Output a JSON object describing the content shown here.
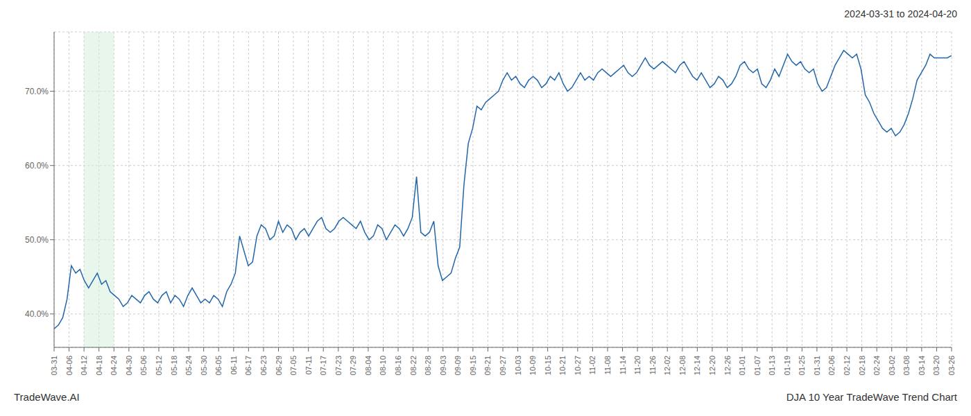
{
  "chart_data": {
    "type": "line",
    "title": "2024-03-31 to 2024-04-20",
    "annotations": [
      "TradeWave.AI",
      "DJA 10 Year TradeWave Trend Chart"
    ],
    "color": "#2266aa",
    "grid": true,
    "xlim": [
      0,
      208
    ],
    "ylim": [
      35.5,
      78.0
    ],
    "yticks": [
      {
        "value": 40.0,
        "label": "40.0%"
      },
      {
        "value": 50.0,
        "label": "50.0%"
      },
      {
        "value": 60.0,
        "label": "60.0%"
      },
      {
        "value": 70.0,
        "label": "70.0%"
      }
    ],
    "xticks": [
      {
        "value": 0,
        "label": "03-31"
      },
      {
        "value": 3.466666666667,
        "label": "04-06"
      },
      {
        "value": 6.933333333333,
        "label": "04-12"
      },
      {
        "value": 10.4,
        "label": "04-18"
      },
      {
        "value": 13.866666666667,
        "label": "04-24"
      },
      {
        "value": 17.333333333333,
        "label": "04-30"
      },
      {
        "value": 20.8,
        "label": "05-06"
      },
      {
        "value": 24.266666666667,
        "label": "05-12"
      },
      {
        "value": 27.733333333333,
        "label": "05-18"
      },
      {
        "value": 31.2,
        "label": "05-24"
      },
      {
        "value": 34.666666666667,
        "label": "05-30"
      },
      {
        "value": 38.133333333333,
        "label": "06-05"
      },
      {
        "value": 41.6,
        "label": "06-11"
      },
      {
        "value": 45.066666666667,
        "label": "06-17"
      },
      {
        "value": 48.533333333333,
        "label": "06-23"
      },
      {
        "value": 52,
        "label": "06-29"
      },
      {
        "value": 55.466666666667,
        "label": "07-05"
      },
      {
        "value": 58.933333333333,
        "label": "07-11"
      },
      {
        "value": 62.4,
        "label": "07-17"
      },
      {
        "value": 65.866666666667,
        "label": "07-23"
      },
      {
        "value": 69.333333333333,
        "label": "07-29"
      },
      {
        "value": 72.8,
        "label": "08-04"
      },
      {
        "value": 76.266666666667,
        "label": "08-10"
      },
      {
        "value": 79.733333333333,
        "label": "08-16"
      },
      {
        "value": 83.2,
        "label": "08-22"
      },
      {
        "value": 86.666666666667,
        "label": "08-28"
      },
      {
        "value": 90.133333333333,
        "label": "09-03"
      },
      {
        "value": 93.6,
        "label": "09-09"
      },
      {
        "value": 97.066666666667,
        "label": "09-15"
      },
      {
        "value": 100.533333333333,
        "label": "09-21"
      },
      {
        "value": 104,
        "label": "09-27"
      },
      {
        "value": 107.466666666667,
        "label": "10-03"
      },
      {
        "value": 110.933333333333,
        "label": "10-09"
      },
      {
        "value": 114.4,
        "label": "10-15"
      },
      {
        "value": 117.866666666667,
        "label": "10-21"
      },
      {
        "value": 121.333333333333,
        "label": "10-27"
      },
      {
        "value": 124.8,
        "label": "11-02"
      },
      {
        "value": 128.266666666667,
        "label": "11-08"
      },
      {
        "value": 131.733333333333,
        "label": "11-14"
      },
      {
        "value": 135.2,
        "label": "11-20"
      },
      {
        "value": 138.666666666667,
        "label": "11-26"
      },
      {
        "value": 142.133333333333,
        "label": "12-02"
      },
      {
        "value": 145.6,
        "label": "12-08"
      },
      {
        "value": 149.066666666667,
        "label": "12-14"
      },
      {
        "value": 152.533333333333,
        "label": "12-20"
      },
      {
        "value": 156,
        "label": "12-26"
      },
      {
        "value": 159.466666666667,
        "label": "01-01"
      },
      {
        "value": 162.933333333333,
        "label": "01-07"
      },
      {
        "value": 166.4,
        "label": "01-13"
      },
      {
        "value": 169.866666666667,
        "label": "01-19"
      },
      {
        "value": 173.333333333333,
        "label": "01-25"
      },
      {
        "value": 176.8,
        "label": "01-31"
      },
      {
        "value": 180.266666666667,
        "label": "02-06"
      },
      {
        "value": 183.733333333333,
        "label": "02-12"
      },
      {
        "value": 187.2,
        "label": "02-18"
      },
      {
        "value": 190.666666666667,
        "label": "02-24"
      },
      {
        "value": 194.133333333333,
        "label": "03-02"
      },
      {
        "value": 197.6,
        "label": "03-08"
      },
      {
        "value": 201.066666666667,
        "label": "03-14"
      },
      {
        "value": 204.533333333333,
        "label": "03-20"
      },
      {
        "value": 208,
        "label": "03-26"
      }
    ],
    "shade": {
      "x0": 6.933333333333,
      "x1": 13.866666666667,
      "color": "#d4edda"
    },
    "x": [
      0,
      1,
      2,
      3,
      4,
      5,
      6,
      7,
      8,
      9,
      10,
      11,
      12,
      13,
      14,
      15,
      16,
      17,
      18,
      19,
      20,
      21,
      22,
      23,
      24,
      25,
      26,
      27,
      28,
      29,
      30,
      31,
      32,
      33,
      34,
      35,
      36,
      37,
      38,
      39,
      40,
      41,
      42,
      43,
      44,
      45,
      46,
      47,
      48,
      49,
      50,
      51,
      52,
      53,
      54,
      55,
      56,
      57,
      58,
      59,
      60,
      61,
      62,
      63,
      64,
      65,
      66,
      67,
      68,
      69,
      70,
      71,
      72,
      73,
      74,
      75,
      76,
      77,
      78,
      79,
      80,
      81,
      82,
      83,
      84,
      85,
      86,
      87,
      88,
      89,
      90,
      91,
      92,
      93,
      94,
      95,
      96,
      97,
      98,
      99,
      100,
      101,
      102,
      103,
      104,
      105,
      106,
      107,
      108,
      109,
      110,
      111,
      112,
      113,
      114,
      115,
      116,
      117,
      118,
      119,
      120,
      121,
      122,
      123,
      124,
      125,
      126,
      127,
      128,
      129,
      130,
      131,
      132,
      133,
      134,
      135,
      136,
      137,
      138,
      139,
      140,
      141,
      142,
      143,
      144,
      145,
      146,
      147,
      148,
      149,
      150,
      151,
      152,
      153,
      154,
      155,
      156,
      157,
      158,
      159,
      160,
      161,
      162,
      163,
      164,
      165,
      166,
      167,
      168,
      169,
      170,
      171,
      172,
      173,
      174,
      175,
      176,
      177,
      178,
      179,
      180,
      181,
      182,
      183,
      184,
      185,
      186,
      187,
      188,
      189,
      190,
      191,
      192,
      193,
      194,
      195,
      196,
      197,
      198,
      199,
      200,
      201,
      202,
      203,
      204,
      205,
      206,
      207,
      208
    ],
    "values": [
      38.0,
      38.5,
      39.5,
      42.0,
      46.5,
      45.5,
      46.0,
      44.5,
      43.5,
      44.5,
      45.5,
      44.0,
      44.5,
      43.0,
      42.5,
      42.0,
      41.0,
      41.5,
      42.5,
      42.0,
      41.5,
      42.5,
      43.0,
      42.0,
      41.5,
      42.5,
      43.0,
      41.5,
      42.5,
      42.0,
      41.0,
      42.5,
      43.5,
      42.5,
      41.5,
      42.0,
      41.5,
      42.5,
      42.0,
      41.0,
      43.0,
      44.0,
      45.5,
      50.5,
      48.5,
      46.5,
      47.0,
      50.5,
      52.0,
      51.5,
      50.0,
      50.5,
      52.5,
      51.0,
      52.0,
      51.5,
      50.0,
      51.0,
      51.5,
      50.5,
      51.5,
      52.5,
      53.0,
      51.5,
      51.0,
      51.5,
      52.5,
      53.0,
      52.5,
      52.0,
      51.5,
      52.5,
      51.0,
      50.0,
      50.5,
      52.0,
      51.5,
      50.0,
      51.0,
      52.0,
      51.5,
      50.5,
      51.5,
      53.0,
      58.5,
      51.0,
      50.5,
      51.0,
      52.5,
      46.5,
      44.5,
      45.0,
      45.5,
      47.5,
      49.0,
      57.5,
      63.0,
      65.0,
      68.0,
      67.5,
      68.5,
      69.0,
      69.5,
      70.0,
      71.5,
      72.5,
      71.5,
      72.0,
      71.0,
      70.5,
      71.5,
      72.0,
      71.5,
      70.5,
      71.0,
      72.0,
      71.5,
      72.5,
      71.0,
      70.0,
      70.5,
      71.5,
      72.5,
      71.5,
      72.0,
      71.5,
      72.5,
      73.0,
      72.5,
      72.0,
      72.5,
      73.0,
      73.5,
      72.5,
      72.0,
      72.5,
      73.5,
      74.5,
      73.5,
      73.0,
      73.5,
      74.0,
      73.5,
      73.0,
      72.5,
      73.5,
      74.0,
      73.0,
      72.0,
      71.5,
      72.5,
      71.5,
      70.5,
      71.0,
      72.0,
      71.5,
      70.5,
      71.0,
      72.0,
      73.5,
      74.0,
      73.0,
      72.5,
      73.0,
      71.0,
      70.5,
      71.5,
      73.0,
      72.0,
      73.5,
      75.0,
      74.0,
      73.5,
      74.0,
      73.0,
      72.5,
      73.0,
      71.0,
      70.0,
      70.5,
      72.0,
      73.5,
      74.5,
      75.5,
      75.0,
      74.5,
      75.0,
      73.0,
      69.5,
      68.5,
      67.0,
      66.0,
      65.0,
      64.5,
      65.0,
      64.0,
      64.5,
      65.5,
      67.0,
      69.0,
      71.5,
      72.5,
      73.5,
      75.0,
      74.5,
      74.5,
      74.5,
      74.5,
      74.8
    ]
  }
}
